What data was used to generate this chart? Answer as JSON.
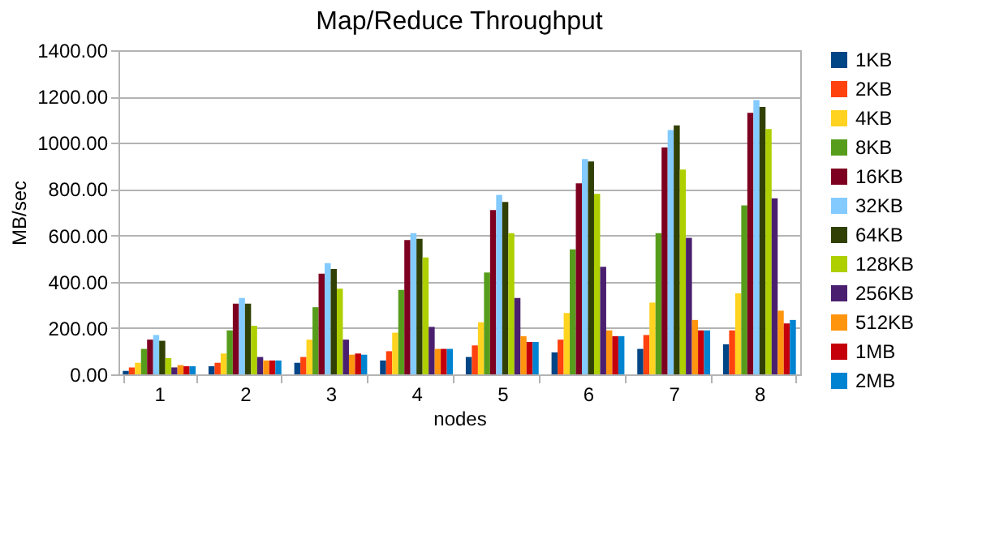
{
  "chart_data": {
    "type": "bar",
    "title": "Map/Reduce Throughput",
    "xlabel": "nodes",
    "ylabel": "MB/sec",
    "categories": [
      "1",
      "2",
      "3",
      "4",
      "5",
      "6",
      "7",
      "8"
    ],
    "ylim": [
      0,
      1400
    ],
    "yticks": [
      {
        "value": 0,
        "label": "0.00"
      },
      {
        "value": 200,
        "label": "200.00"
      },
      {
        "value": 400,
        "label": "400.00"
      },
      {
        "value": 600,
        "label": "600.00"
      },
      {
        "value": 800,
        "label": "800.00"
      },
      {
        "value": 1000,
        "label": "1000.00"
      },
      {
        "value": 1200,
        "label": "1200.00"
      },
      {
        "value": 1400,
        "label": "1400.00"
      }
    ],
    "grid": "y",
    "legend": "right",
    "series": [
      {
        "name": "1KB",
        "color": "#004586",
        "values": [
          15,
          35,
          50,
          60,
          75,
          95,
          110,
          130
        ]
      },
      {
        "name": "2KB",
        "color": "#ff420e",
        "values": [
          30,
          50,
          75,
          100,
          125,
          150,
          170,
          190
        ]
      },
      {
        "name": "4KB",
        "color": "#ffd320",
        "values": [
          50,
          90,
          150,
          180,
          225,
          265,
          310,
          350
        ]
      },
      {
        "name": "8KB",
        "color": "#579d1c",
        "values": [
          110,
          190,
          290,
          365,
          440,
          540,
          610,
          730
        ]
      },
      {
        "name": "16KB",
        "color": "#7e0021",
        "values": [
          150,
          305,
          435,
          580,
          710,
          825,
          980,
          1130
        ]
      },
      {
        "name": "32KB",
        "color": "#83caff",
        "values": [
          170,
          330,
          480,
          610,
          775,
          930,
          1055,
          1185
        ]
      },
      {
        "name": "64KB",
        "color": "#314004",
        "values": [
          145,
          305,
          455,
          585,
          745,
          920,
          1075,
          1155
        ]
      },
      {
        "name": "128KB",
        "color": "#aecf00",
        "values": [
          70,
          210,
          370,
          505,
          610,
          780,
          885,
          1060
        ]
      },
      {
        "name": "256KB",
        "color": "#4b1f6f",
        "values": [
          30,
          75,
          150,
          205,
          330,
          465,
          590,
          760
        ]
      },
      {
        "name": "512KB",
        "color": "#ff950e",
        "values": [
          40,
          60,
          85,
          110,
          165,
          190,
          235,
          275
        ]
      },
      {
        "name": "1MB",
        "color": "#c5000b",
        "values": [
          35,
          60,
          90,
          110,
          140,
          165,
          190,
          220
        ]
      },
      {
        "name": "2MB",
        "color": "#0084d1",
        "values": [
          35,
          60,
          85,
          110,
          140,
          165,
          190,
          235
        ]
      }
    ]
  }
}
